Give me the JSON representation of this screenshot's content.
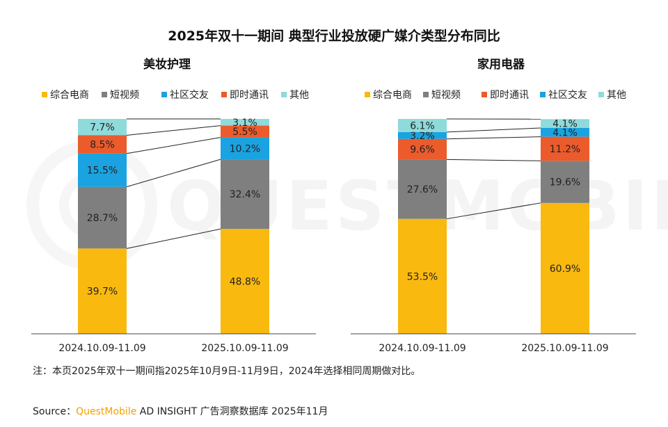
{
  "watermark": "QUESTMOBILE",
  "footnote": "注：本页2025年双十一期间指2025年10月9日-11月9日，2024年选择相同周期做对比。",
  "source": {
    "label": "Source：",
    "brand": "QuestMobile",
    "rest": " AD INSIGHT 广告洞察数据库 2025年11月"
  },
  "chart_data": {
    "type": "stacked-bar",
    "title": "2025年双十一期间 典型行业投放硬广媒介类型分布同比",
    "colors": {
      "综合电商": "#f9b90f",
      "短视频": "#7f7f7f",
      "社区交友": "#1aa3e0",
      "即时通讯": "#eb5b2c",
      "其他": "#8fdada"
    },
    "panels": [
      {
        "title": "美妆护理",
        "legend": [
          "综合电商",
          "短视频",
          "社区交友",
          "即时通讯",
          "其他"
        ],
        "categories": [
          "2024.10.09-11.09",
          "2025.10.09-11.09"
        ],
        "series": [
          {
            "name": "综合电商",
            "values": [
              39.7,
              48.8
            ]
          },
          {
            "name": "短视频",
            "values": [
              28.7,
              32.4
            ]
          },
          {
            "name": "社区交友",
            "values": [
              15.5,
              10.2
            ]
          },
          {
            "name": "即时通讯",
            "values": [
              8.5,
              5.5
            ]
          },
          {
            "name": "其他",
            "values": [
              7.7,
              3.1
            ]
          }
        ],
        "labels": [
          [
            "39.7%",
            "48.8%"
          ],
          [
            "28.7%",
            "32.4%"
          ],
          [
            "15.5%",
            "10.2%"
          ],
          [
            "8.5%",
            "5.5%"
          ],
          [
            "7.7%",
            "3.1%"
          ]
        ],
        "ylim": [
          0,
          100
        ]
      },
      {
        "title": "家用电器",
        "legend": [
          "综合电商",
          "短视频",
          "即时通讯",
          "社区交友",
          "其他"
        ],
        "categories": [
          "2024.10.09-11.09",
          "2025.10.09-11.09"
        ],
        "series": [
          {
            "name": "综合电商",
            "values": [
              53.5,
              60.9
            ]
          },
          {
            "name": "短视频",
            "values": [
              27.6,
              19.6
            ]
          },
          {
            "name": "即时通讯",
            "values": [
              9.6,
              11.2
            ]
          },
          {
            "name": "社区交友",
            "values": [
              3.2,
              4.1
            ]
          },
          {
            "name": "其他",
            "values": [
              6.1,
              4.1
            ]
          }
        ],
        "labels": [
          [
            "53.5%",
            "60.9%"
          ],
          [
            "27.6%",
            "19.6%"
          ],
          [
            "9.6%",
            "11.2%"
          ],
          [
            "3.2%",
            "4.1%"
          ],
          [
            "6.1%",
            "4.1%"
          ]
        ],
        "ylim": [
          0,
          100
        ]
      }
    ]
  }
}
